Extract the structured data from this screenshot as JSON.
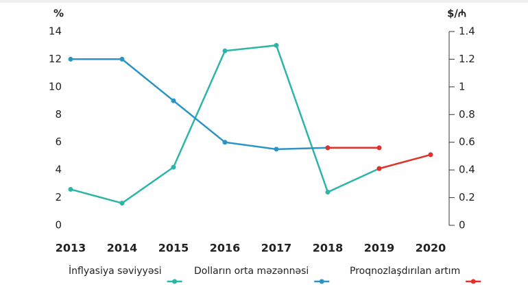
{
  "chart_data": {
    "type": "line",
    "ylabel": "%",
    "y2label": "$/₼",
    "categories": [
      "2013",
      "2014",
      "2015",
      "2016",
      "2017",
      "2018",
      "2019",
      "2020"
    ],
    "ylim": [
      0,
      14
    ],
    "yticks": [
      0,
      2,
      4,
      6,
      8,
      10,
      12,
      14
    ],
    "y2lim": [
      0,
      1.4
    ],
    "y2ticks": [
      0,
      0.2,
      0.4,
      0.6,
      0.8,
      1,
      1.2,
      1.4
    ],
    "series": [
      {
        "name": "İnflyasiya səviyyəsi",
        "color": "#2bb5a8",
        "values": [
          2.6,
          1.6,
          4.2,
          12.6,
          13.0,
          2.4,
          4.1,
          null
        ]
      },
      {
        "name": "Dolların orta məzənnəsi",
        "color": "#2a94c4",
        "axis": "y2",
        "values": [
          1.2,
          1.2,
          0.9,
          0.6,
          0.55,
          0.56,
          null,
          null
        ]
      },
      {
        "name": "Proqnozlaşdırılan artım",
        "color": "#e0312b",
        "values": [
          null,
          null,
          null,
          null,
          null,
          null,
          4.1,
          5.1
        ]
      },
      {
        "color": "#e0312b",
        "axis": "y2",
        "values": [
          null,
          null,
          null,
          null,
          null,
          0.56,
          0.56,
          null
        ]
      }
    ]
  }
}
